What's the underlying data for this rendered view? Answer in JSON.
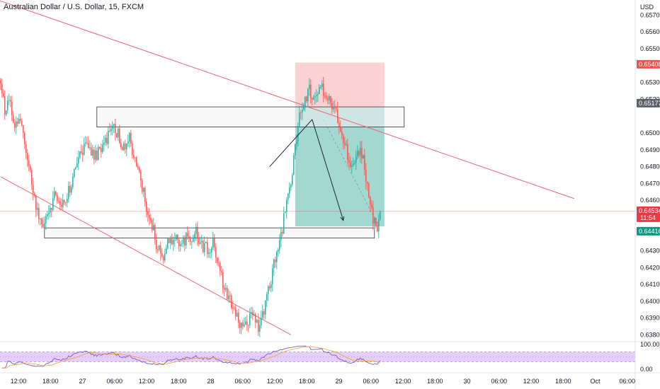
{
  "header": {
    "title": "Australian Dollar / U.S. Dollar, 15, FXCM",
    "currency": "USD"
  },
  "colors": {
    "up": "#26a69a",
    "down": "#ef5350",
    "trendline": "#f06577",
    "target_zone": "#83cbc0",
    "stop_zone": "#f9c2c4",
    "rsi_band": "#e2c9fb",
    "rsi_line": "#7e57c2",
    "rsi_ma": "#f0a030",
    "box_fill": "#f2f2f2"
  },
  "chart_data": [
    {
      "type": "candlestick",
      "symbol": "AUDUSD",
      "interval": "15",
      "ylim": [
        0.6376,
        0.6579
      ],
      "y_ticks": [
        "0.65700",
        "0.65600",
        "0.65500",
        "0.65300",
        "0.65200",
        "0.65000",
        "0.64900",
        "0.64800",
        "0.64700",
        "0.64600",
        "0.64300",
        "0.64200",
        "0.64100",
        "0.64000",
        "0.63900",
        "0.63800"
      ],
      "x_ticks": [
        "12:00",
        "18:00",
        "27",
        "06:00",
        "12:00",
        "18:00",
        "28",
        "06:00",
        "12:00",
        "18:00",
        "29",
        "06:00",
        "12:00",
        "18:00",
        "30",
        "06:00",
        "12:00",
        "18:00",
        "Oct",
        "06:00"
      ],
      "price_badges": [
        {
          "label": "0.65408",
          "value": 0.65408,
          "color": "#ef5350"
        },
        {
          "label": "0.65177",
          "value": 0.65177,
          "color": "#5d606b"
        },
        {
          "label": "0.64534",
          "value": 0.64534,
          "color": "#f23645",
          "sub": "11:54"
        },
        {
          "label": "0.64416",
          "value": 0.64416,
          "color": "#089981"
        }
      ],
      "last_price": 0.64534,
      "anchors": [
        [
          0,
          0.6528
        ],
        [
          3,
          0.6513
        ],
        [
          6,
          0.652
        ],
        [
          10,
          0.6503
        ],
        [
          14,
          0.6506
        ],
        [
          18,
          0.6487
        ],
        [
          22,
          0.647
        ],
        [
          26,
          0.6452
        ],
        [
          30,
          0.6446
        ],
        [
          34,
          0.6451
        ],
        [
          38,
          0.6462
        ],
        [
          42,
          0.6456
        ],
        [
          46,
          0.6462
        ],
        [
          50,
          0.647
        ],
        [
          54,
          0.6482
        ],
        [
          58,
          0.649
        ],
        [
          62,
          0.6493
        ],
        [
          65,
          0.6488
        ],
        [
          68,
          0.6487
        ],
        [
          72,
          0.649
        ],
        [
          76,
          0.6498
        ],
        [
          80,
          0.6504
        ],
        [
          84,
          0.6497
        ],
        [
          88,
          0.6489
        ],
        [
          91,
          0.6497
        ],
        [
          94,
          0.6486
        ],
        [
          98,
          0.6476
        ],
        [
          102,
          0.646
        ],
        [
          106,
          0.6449
        ],
        [
          110,
          0.6434
        ],
        [
          114,
          0.6426
        ],
        [
          118,
          0.6434
        ],
        [
          122,
          0.6437
        ],
        [
          126,
          0.6436
        ],
        [
          130,
          0.6437
        ],
        [
          134,
          0.6437
        ],
        [
          138,
          0.6441
        ],
        [
          142,
          0.6433
        ],
        [
          146,
          0.6431
        ],
        [
          150,
          0.6434
        ],
        [
          154,
          0.6423
        ],
        [
          158,
          0.6408
        ],
        [
          162,
          0.64
        ],
        [
          166,
          0.6392
        ],
        [
          170,
          0.6386
        ],
        [
          174,
          0.6388
        ],
        [
          178,
          0.6394
        ],
        [
          182,
          0.6382
        ],
        [
          186,
          0.6396
        ],
        [
          190,
          0.641
        ],
        [
          194,
          0.6426
        ],
        [
          198,
          0.6438
        ],
        [
          202,
          0.646
        ],
        [
          206,
          0.6476
        ],
        [
          210,
          0.6505
        ],
        [
          214,
          0.6518
        ],
        [
          218,
          0.6525
        ],
        [
          222,
          0.6522
        ],
        [
          226,
          0.6527
        ],
        [
          230,
          0.6521
        ],
        [
          234,
          0.6518
        ],
        [
          238,
          0.6508
        ],
        [
          242,
          0.6495
        ],
        [
          246,
          0.6485
        ],
        [
          250,
          0.648
        ],
        [
          253,
          0.649
        ],
        [
          256,
          0.6487
        ],
        [
          260,
          0.6462
        ],
        [
          263,
          0.6447
        ],
        [
          266,
          0.6445
        ],
        [
          268,
          0.6453
        ]
      ],
      "price_axis_label": "USD"
    },
    {
      "type": "line",
      "name": "RSI",
      "ylim": [
        0,
        100
      ],
      "y_ticks": [
        "100.00",
        "0.00"
      ],
      "band": [
        30,
        70
      ]
    }
  ],
  "drawings": {
    "trendlines": [
      {
        "from": [
          -40,
          0.659
        ],
        "to": [
          405,
          0.6461
        ]
      },
      {
        "from": [
          0,
          0.6474
        ],
        "to": [
          205,
          0.638
        ]
      }
    ],
    "zones": [
      {
        "from_bar": 68,
        "to_bar": 285,
        "low": 0.65035,
        "high": 0.65155
      },
      {
        "from_bar": 31,
        "to_bar": 264,
        "low": 0.64376,
        "high": 0.64436
      }
    ],
    "position": {
      "from_bar": 208,
      "to_bar": 271,
      "entry": 0.65148,
      "stop": 0.65418,
      "target": 0.64445
    },
    "arrows": [
      {
        "from": [
          190,
          0.648
        ],
        "to": [
          220,
          0.6508
        ]
      },
      {
        "from": [
          220,
          0.6508
        ],
        "to": [
          242,
          0.6448
        ]
      }
    ]
  }
}
